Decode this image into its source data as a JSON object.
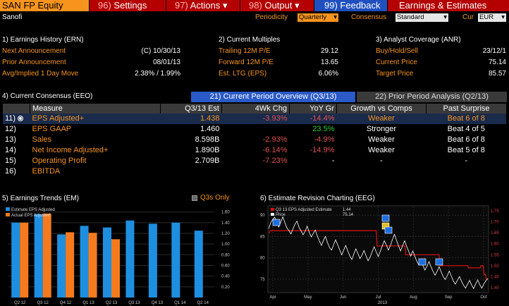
{
  "toolbar": {
    "ticker": "SAN FP Equity",
    "settings_num": "96)",
    "settings": "Settings",
    "actions_num": "97)",
    "actions": "Actions",
    "output_num": "98)",
    "output": "Output",
    "feedback_num": "99)",
    "feedback": "Feedback",
    "title": "Earnings & Estimates"
  },
  "company": "Sanofi",
  "controls": {
    "periodicity_label": "Periodicity",
    "periodicity_value": "Quarterly",
    "consensus_label": "Consensus",
    "consensus_value": "Standard",
    "cur_label": "Cur",
    "cur_value": "EUR"
  },
  "earnings_history": {
    "title": "1) Earnings History (ERN)",
    "rows": [
      {
        "label": "Next Announcement",
        "value": "(C)  10/30/13"
      },
      {
        "label": "Prior Announcement",
        "value": "08/01/13"
      },
      {
        "label": "Avg/Implied 1 Day Move",
        "value": "2.38% / 1.99%"
      }
    ]
  },
  "current_multiples": {
    "title": "2) Current Multiples",
    "rows": [
      {
        "label": "Trailing 12M P/E",
        "value": "29.12"
      },
      {
        "label": "Forward 12M P/E",
        "value": "13.65"
      },
      {
        "label": "Est. LTG (EPS)",
        "value": "6.06%"
      }
    ]
  },
  "analyst_coverage": {
    "title": "3) Analyst Coverage (ANR)",
    "rows": [
      {
        "label": "Buy/Hold/Sell",
        "value": "23/12/1"
      },
      {
        "label": "Current Price",
        "value": "75.14"
      },
      {
        "label": "Target Price",
        "value": "85.57"
      }
    ]
  },
  "consensus": {
    "title": "4) Current Consensus (EEO)",
    "tab_active": "21) Current Period Overview (Q3/13)",
    "tab_inactive": "22) Prior Period Analysis (Q2/13)",
    "headers": [
      "Measure",
      "Q3/13 Est",
      "4Wk Chg",
      "YoY Gr",
      "Growth vs Comps",
      "Past Surprise"
    ],
    "rows": [
      {
        "num": "11)",
        "measure": "EPS Adjusted+",
        "est": "1.438",
        "chg": "-3.93%",
        "yoy": "-14.4%",
        "growth": "Weaker",
        "surprise": "Beat 6 of 8"
      },
      {
        "num": "12)",
        "measure": "EPS GAAP",
        "est": "1.460",
        "chg": "",
        "yoy": "23.5%",
        "growth": "Stronger",
        "surprise": "Beat 4 of 5"
      },
      {
        "num": "13)",
        "measure": "Sales",
        "est": "8.598B",
        "chg": "-2.93%",
        "yoy": "-4.9%",
        "growth": "Weaker",
        "surprise": "Beat 6 of 8"
      },
      {
        "num": "14)",
        "measure": "Net Income Adjusted+",
        "est": "1.890B",
        "chg": "-6.14%",
        "yoy": "-14.9%",
        "growth": "Weaker",
        "surprise": "Beat 5 of 8"
      },
      {
        "num": "15)",
        "measure": "Operating Profit",
        "est": "2.709B",
        "chg": "-7.23%",
        "yoy": "-",
        "growth": "-",
        "surprise": "-"
      },
      {
        "num": "16)",
        "measure": "EBITDA",
        "est": "",
        "chg": "",
        "yoy": "",
        "growth": "",
        "surprise": ""
      }
    ]
  },
  "trends": {
    "title": "5) Earnings Trends (EM)",
    "q3s_only": "Q3s Only",
    "legend_estimate": "Estimate EPS Adjusted",
    "legend_actual": "Actual EPS Adjusted",
    "colors": {
      "estimate": "#1e8fe0",
      "actual": "#f57a1e"
    }
  },
  "revision": {
    "title": "6) Estimate Revision Charting (EEG)",
    "legend_estimate": "Q3 13 EPS Adjusted Estimate",
    "legend_estimate_value": "1.44",
    "legend_price": "Price",
    "legend_price_value": "75.14",
    "colors": {
      "estimate": "#e01010",
      "price": "#ffffff"
    }
  },
  "chart_data": [
    {
      "type": "bar",
      "categories": [
        "Q2 12",
        "Q3 12",
        "Q4 12",
        "Q1 13",
        "Q2 13",
        "Q3 13",
        "Q4 13",
        "Q1 14",
        "Q2 14"
      ],
      "series": [
        {
          "name": "Estimate EPS Adjusted",
          "values": [
            1.4,
            1.56,
            1.18,
            1.34,
            1.31,
            1.44,
            1.38,
            1.4,
            1.25
          ]
        },
        {
          "name": "Actual EPS Adjusted",
          "values": [
            1.4,
            1.57,
            1.22,
            1.21,
            1.09,
            null,
            null,
            null,
            null
          ]
        }
      ],
      "ylim": [
        0,
        1.7
      ],
      "yticks": [
        "0.20",
        "0.40",
        "0.60",
        "0.80",
        "1.00",
        "1.20",
        "1.40",
        "1.60"
      ]
    },
    {
      "type": "line",
      "x_labels": [
        "Apr",
        "May",
        "Jun",
        "Jul",
        "Aug",
        "Sep",
        "Oct"
      ],
      "year_label": "2013",
      "left_yticks": [
        "75",
        "80",
        "85",
        "90"
      ],
      "right_yticks": [
        "1.40",
        "1.45",
        "1.50",
        "1.55",
        "1.60",
        "1.65",
        "1.70",
        "1.75"
      ],
      "series": [
        {
          "name": "Q3 13 EPS Adjusted Estimate",
          "axis": "right",
          "values": [
            1.65,
            1.65,
            1.66,
            1.66,
            1.66,
            1.66,
            1.66,
            1.66,
            1.66,
            1.66,
            1.66,
            1.66,
            1.66,
            1.66,
            1.66,
            1.66,
            1.66,
            1.66,
            1.66,
            1.66,
            1.66,
            1.66,
            1.66,
            1.66,
            1.66,
            1.66,
            1.66,
            1.66,
            1.66,
            1.66,
            1.66,
            1.66,
            1.66,
            1.66,
            1.66,
            1.66,
            1.66,
            1.66,
            1.66,
            1.66,
            1.66,
            1.66,
            1.66,
            1.66,
            1.66,
            1.66,
            1.66,
            1.66,
            1.66,
            1.66,
            1.66,
            1.66,
            1.66,
            1.66,
            1.66,
            1.66,
            1.66,
            1.66,
            1.66,
            1.66,
            1.66,
            1.66,
            1.66,
            1.66,
            1.66,
            1.66,
            1.66,
            1.66,
            1.66,
            1.66,
            1.66,
            1.66,
            1.66,
            1.66,
            1.66,
            1.66,
            1.66,
            1.66,
            1.66,
            1.66,
            1.66,
            1.66,
            1.66,
            1.66,
            1.66,
            1.66,
            1.66,
            1.66,
            1.66,
            1.66,
            1.66,
            1.66,
            1.66,
            1.66,
            1.66,
            1.66,
            1.66,
            1.66,
            1.66,
            1.66,
            1.66,
            1.66,
            1.66,
            1.66,
            1.66,
            1.66,
            1.66,
            1.66,
            1.66,
            1.66,
            1.66,
            1.66,
            1.66,
            1.66,
            1.66,
            1.66,
            1.66,
            1.66,
            1.66,
            1.66,
            1.66,
            1.66,
            1.66,
            1.66,
            1.66,
            1.66,
            1.66,
            1.66,
            1.66,
            1.66,
            1.66,
            1.66,
            1.66,
            1.66,
            1.66,
            1.66,
            1.66,
            1.66,
            1.66,
            1.66,
            1.59,
            1.59,
            1.59,
            1.59,
            1.59,
            1.59,
            1.59,
            1.59,
            1.59,
            1.59,
            1.59,
            1.59,
            1.59,
            1.59,
            1.59,
            1.59,
            1.59,
            1.59,
            1.59,
            1.59,
            1.59,
            1.59,
            1.59,
            1.59,
            1.59,
            1.59,
            1.59,
            1.59,
            1.59,
            1.59,
            1.59,
            1.59,
            1.59,
            1.59,
            1.59,
            1.59,
            1.59,
            1.55,
            1.55,
            1.55,
            1.55,
            1.55,
            1.55,
            1.55,
            1.55,
            1.55,
            1.55,
            1.55,
            1.55,
            1.55,
            1.55,
            1.55,
            1.55,
            1.55,
            1.55,
            1.55,
            1.55,
            1.55,
            1.55,
            1.55,
            1.55,
            1.55,
            1.55,
            1.55,
            1.55,
            1.55,
            1.55,
            1.55,
            1.55,
            1.55,
            1.55,
            1.55,
            1.55,
            1.55,
            1.55,
            1.55,
            1.55,
            1.55,
            1.55,
            1.55,
            1.55,
            1.5,
            1.5,
            1.5,
            1.5,
            1.5,
            1.5,
            1.5,
            1.5,
            1.5,
            1.5,
            1.5,
            1.5,
            1.5,
            1.5,
            1.5,
            1.5,
            1.5,
            1.5,
            1.5,
            1.5,
            1.5,
            1.5,
            1.5,
            1.5,
            1.5,
            1.5,
            1.5,
            1.5,
            1.5,
            1.5,
            1.5,
            1.5,
            1.5,
            1.5,
            1.5,
            1.5,
            1.5,
            1.49,
            1.49,
            1.49,
            1.49,
            1.49,
            1.49,
            1.49,
            1.49,
            1.49,
            1.49,
            1.49,
            1.49,
            1.49,
            1.49,
            1.49,
            1.49,
            1.5,
            1.5,
            1.5,
            1.5,
            1.46,
            1.46,
            1.46,
            1.44,
            1.44,
            1.44
          ]
        },
        {
          "name": "Price",
          "axis": "left",
          "values": [
            86.8,
            88.2,
            89.0,
            89.5,
            88.6,
            87.2,
            88.4,
            89.6,
            88.3,
            87.0,
            86.4,
            85.6,
            86.8,
            87.9,
            88.6,
            87.1,
            86.3,
            85.4,
            86.2,
            87.4,
            86.0,
            84.9,
            85.7,
            86.5,
            85.1,
            84.0,
            82.9,
            84.1,
            85.0,
            83.6,
            82.4,
            81.8,
            83.0,
            84.2,
            83.1,
            81.9,
            80.7,
            81.8,
            82.9,
            81.6,
            80.4,
            79.6,
            80.9,
            82.1,
            81.0,
            79.8,
            80.6,
            81.7,
            80.5,
            79.3,
            80.2,
            81.4,
            82.6,
            81.4,
            80.3,
            81.5,
            82.8,
            84.0,
            83.0,
            81.8,
            82.9,
            84.3,
            85.5,
            84.1,
            82.8,
            81.6,
            82.8,
            84.0,
            82.7,
            81.5,
            80.4,
            81.6,
            80.4,
            79.2,
            78.3,
            79.4,
            78.2,
            77.1,
            78.0,
            79.1,
            77.9,
            76.8,
            75.9,
            76.8,
            77.9,
            76.7,
            75.6,
            74.9,
            75.8,
            76.9,
            75.7,
            74.6,
            73.8,
            74.7,
            75.6,
            74.5,
            73.6,
            72.9,
            73.8,
            74.7,
            73.6,
            72.8,
            73.9,
            74.8,
            73.7,
            72.9,
            73.8,
            74.6,
            75.1
          ]
        }
      ]
    }
  ]
}
